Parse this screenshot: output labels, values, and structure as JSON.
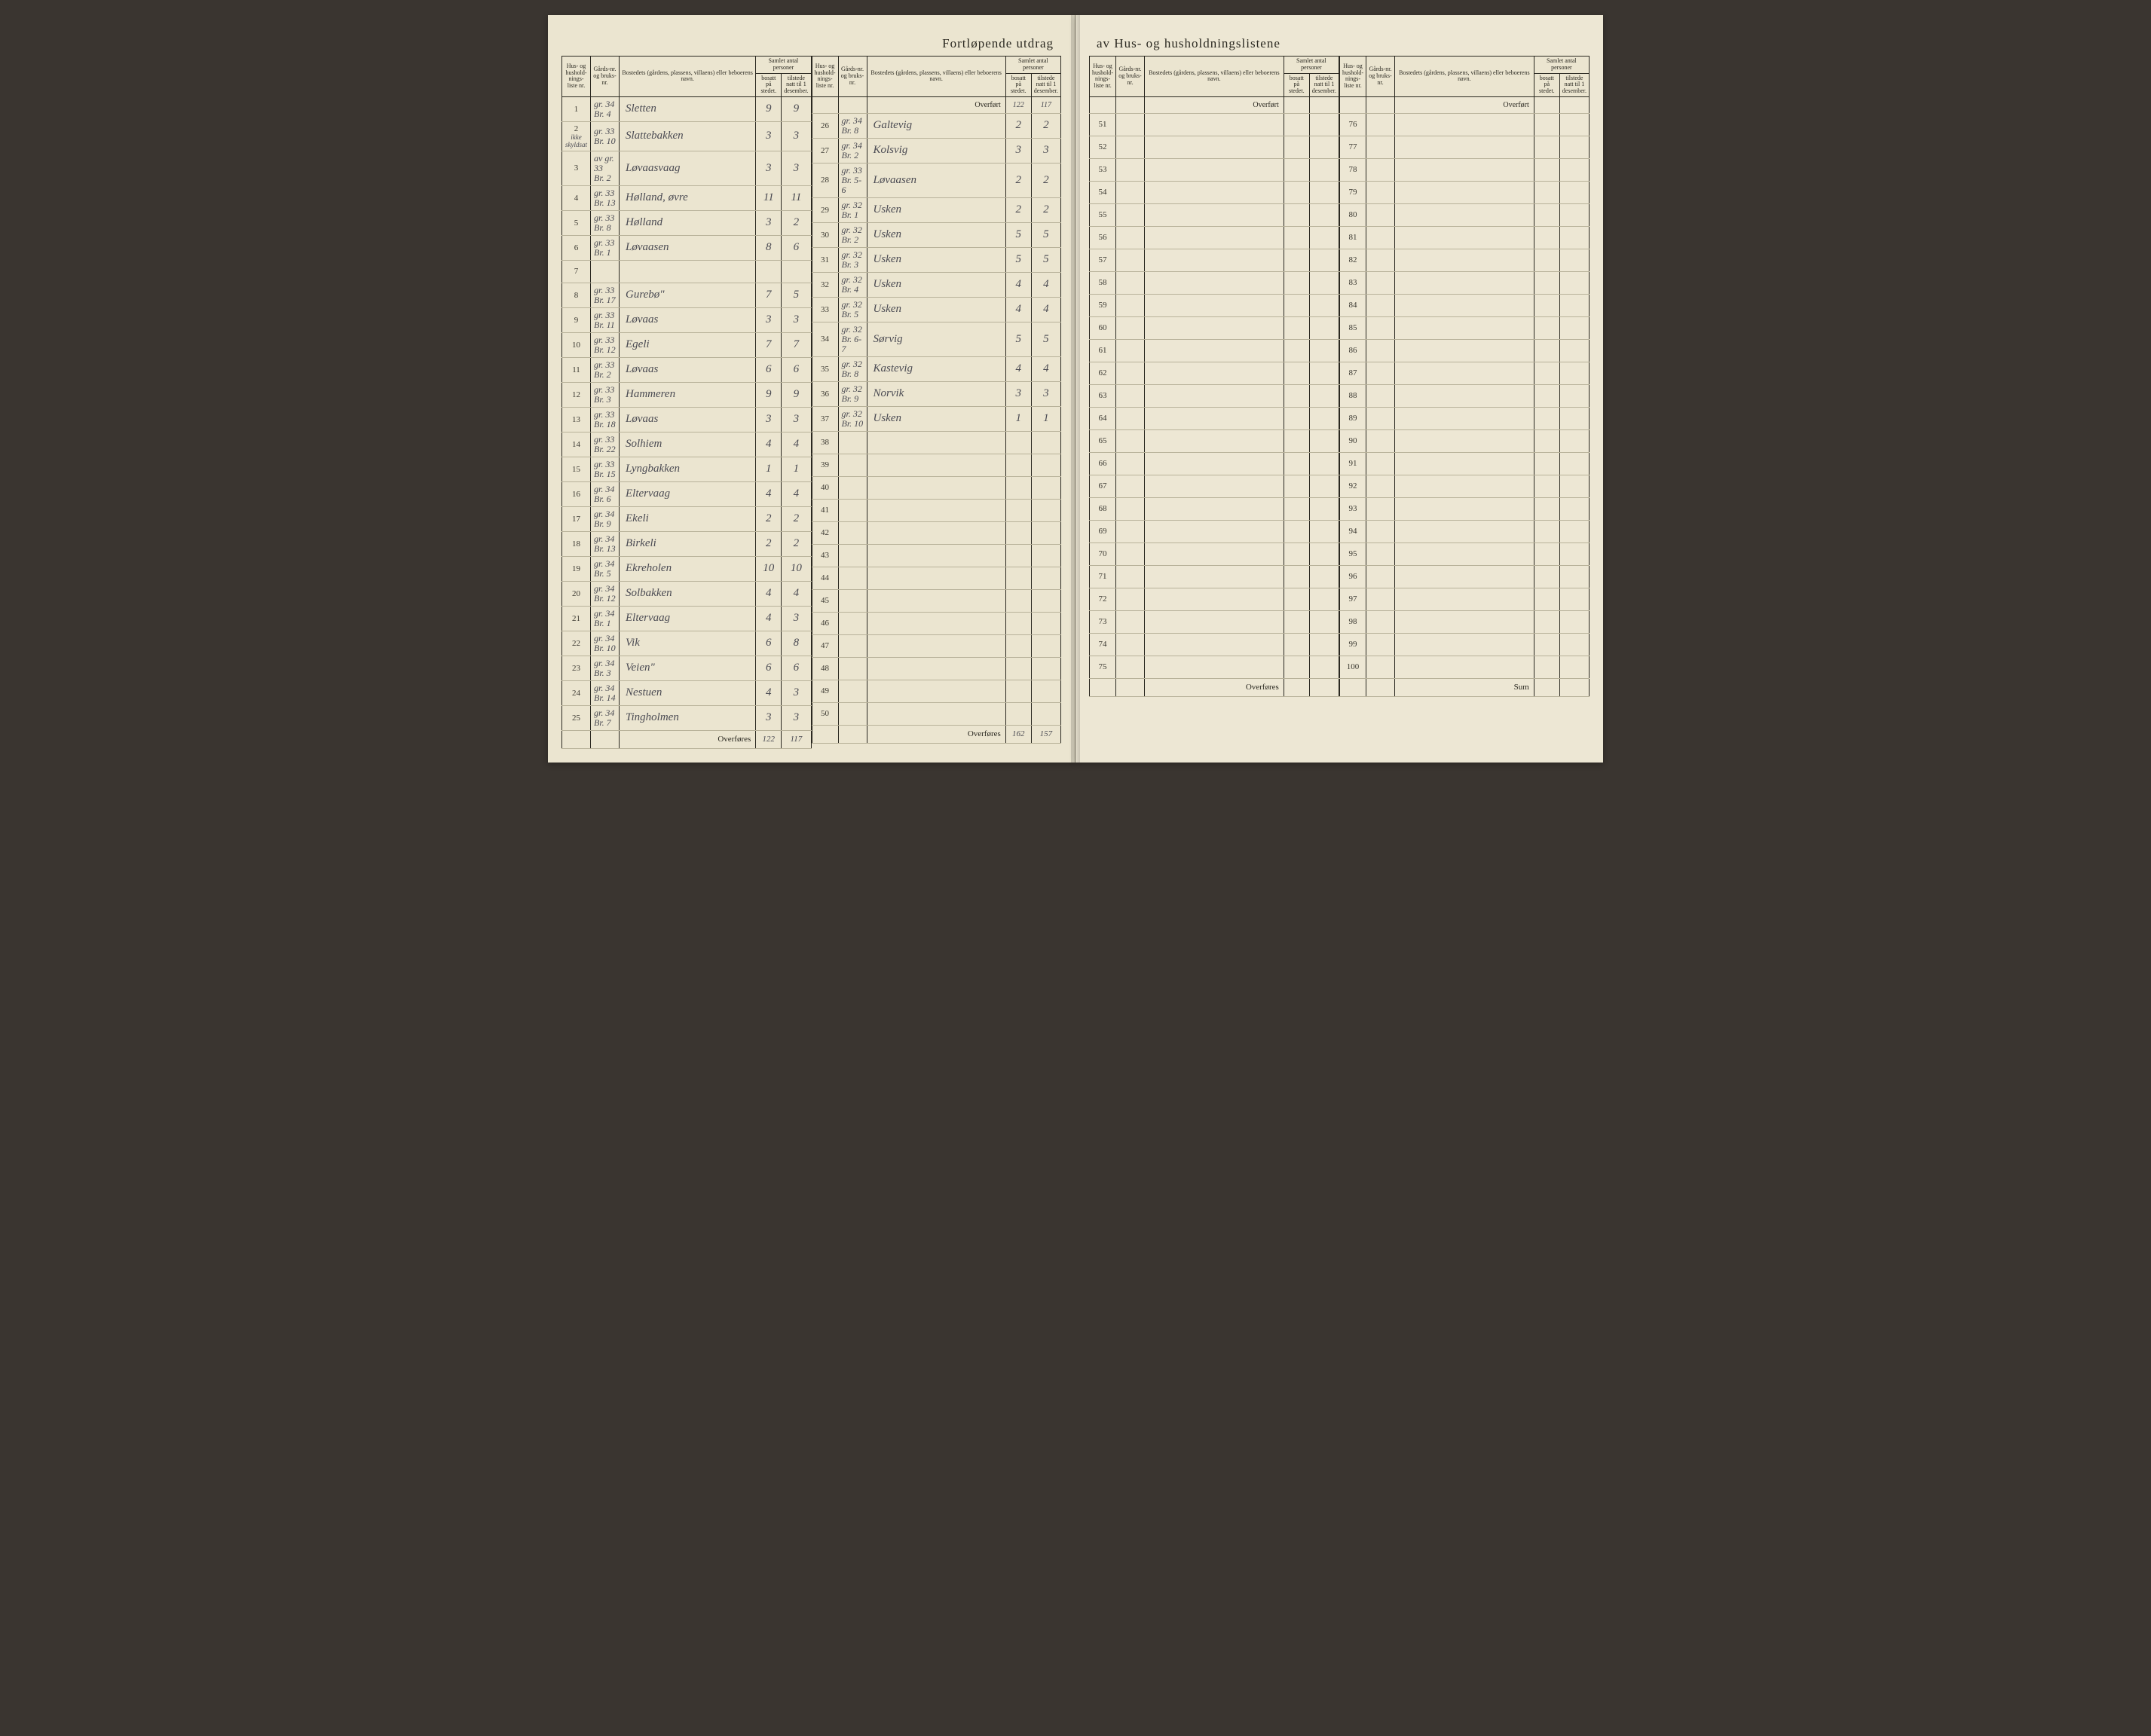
{
  "title_left": "Fortløpende utdrag",
  "title_right": "av Hus- og husholdningslistene",
  "headers": {
    "col1": "Hus- og hushold-nings-liste nr.",
    "col2": "Gårds-nr. og bruks-nr.",
    "col3": "Bostedets (gårdens, plassens, villaens) eller beboerens navn.",
    "col4_group": "Samlet antal personer",
    "col4a": "bosatt på stedet.",
    "col4b": "tilstede natt til 1 desember."
  },
  "overfort": "Overført",
  "overfores": "Overføres",
  "sum": "Sum",
  "overfort_vals": {
    "a": "122",
    "b": "117"
  },
  "left_a": [
    {
      "nr": "1",
      "g": "gr. 34",
      "b": "Br. 4",
      "name": "Sletten",
      "v1": "9",
      "v2": "9"
    },
    {
      "nr": "2",
      "g": "gr. 33",
      "b": "Br. 10",
      "name": "Slattebakken",
      "v1": "3",
      "v2": "3",
      "note": "ikke skyldsat"
    },
    {
      "nr": "3",
      "g": "gr. 33",
      "b": "Br. 2",
      "name": "Løvaasvaag",
      "v1": "3",
      "v2": "3",
      "pre": "av"
    },
    {
      "nr": "4",
      "g": "gr. 33",
      "b": "Br. 13",
      "name": "Hølland, øvre",
      "v1": "11",
      "v2": "11"
    },
    {
      "nr": "5",
      "g": "gr. 33",
      "b": "Br. 8",
      "name": "Hølland",
      "v1": "3",
      "v2": "2"
    },
    {
      "nr": "6",
      "g": "gr. 33",
      "b": "Br. 1",
      "name": "Løvaasen",
      "v1": "8",
      "v2": "6"
    },
    {
      "nr": "7",
      "g": "",
      "b": "",
      "name": "",
      "v1": "",
      "v2": ""
    },
    {
      "nr": "8",
      "g": "gr. 33",
      "b": "Br. 17",
      "name": "Gurebø\"",
      "v1": "7",
      "v2": "5"
    },
    {
      "nr": "9",
      "g": "gr. 33",
      "b": "Br. 11",
      "name": "Løvaas",
      "v1": "3",
      "v2": "3"
    },
    {
      "nr": "10",
      "g": "gr. 33",
      "b": "Br. 12",
      "name": "Egeli",
      "v1": "7",
      "v2": "7"
    },
    {
      "nr": "11",
      "g": "gr. 33",
      "b": "Br. 2",
      "name": "Løvaas",
      "v1": "6",
      "v2": "6"
    },
    {
      "nr": "12",
      "g": "gr. 33",
      "b": "Br. 3",
      "name": "Hammeren",
      "v1": "9",
      "v2": "9"
    },
    {
      "nr": "13",
      "g": "gr. 33",
      "b": "Br. 18",
      "name": "Løvaas",
      "v1": "3",
      "v2": "3"
    },
    {
      "nr": "14",
      "g": "gr. 33",
      "b": "Br. 22",
      "name": "Solhiem",
      "v1": "4",
      "v2": "4"
    },
    {
      "nr": "15",
      "g": "gr. 33",
      "b": "Br. 15",
      "name": "Lyngbakken",
      "v1": "1",
      "v2": "1"
    },
    {
      "nr": "16",
      "g": "gr. 34",
      "b": "Br. 6",
      "name": "Eltervaag",
      "v1": "4",
      "v2": "4"
    },
    {
      "nr": "17",
      "g": "gr. 34",
      "b": "Br. 9",
      "name": "Ekeli",
      "v1": "2",
      "v2": "2"
    },
    {
      "nr": "18",
      "g": "gr. 34",
      "b": "Br. 13",
      "name": "Birkeli",
      "v1": "2",
      "v2": "2"
    },
    {
      "nr": "19",
      "g": "gr. 34",
      "b": "Br. 5",
      "name": "Ekreholen",
      "v1": "10",
      "v2": "10"
    },
    {
      "nr": "20",
      "g": "gr. 34",
      "b": "Br. 12",
      "name": "Solbakken",
      "v1": "4",
      "v2": "4"
    },
    {
      "nr": "21",
      "g": "gr. 34",
      "b": "Br. 1",
      "name": "Eltervaag",
      "v1": "4",
      "v2": "3"
    },
    {
      "nr": "22",
      "g": "gr. 34",
      "b": "Br. 10",
      "name": "Vik",
      "v1": "6",
      "v2": "8"
    },
    {
      "nr": "23",
      "g": "gr. 34",
      "b": "Br. 3",
      "name": "Veien\"",
      "v1": "6",
      "v2": "6"
    },
    {
      "nr": "24",
      "g": "gr. 34",
      "b": "Br. 14",
      "name": "Nestuen",
      "v1": "4",
      "v2": "3"
    },
    {
      "nr": "25",
      "g": "gr. 34",
      "b": "Br. 7",
      "name": "Tingholmen",
      "v1": "3",
      "v2": "3"
    }
  ],
  "left_a_foot": {
    "a": "122",
    "b": "117"
  },
  "left_b": [
    {
      "nr": "26",
      "g": "gr. 34",
      "b": "Br. 8",
      "name": "Galtevig",
      "v1": "2",
      "v2": "2"
    },
    {
      "nr": "27",
      "g": "gr. 34",
      "b": "Br. 2",
      "name": "Kolsvig",
      "v1": "3",
      "v2": "3"
    },
    {
      "nr": "28",
      "g": "gr. 33",
      "b": "Br. 5-6",
      "name": "Løvaasen",
      "v1": "2",
      "v2": "2"
    },
    {
      "nr": "29",
      "g": "gr. 32",
      "b": "Br. 1",
      "name": "Usken",
      "v1": "2",
      "v2": "2"
    },
    {
      "nr": "30",
      "g": "gr. 32",
      "b": "Br. 2",
      "name": "Usken",
      "v1": "5",
      "v2": "5"
    },
    {
      "nr": "31",
      "g": "gr. 32",
      "b": "Br. 3",
      "name": "Usken",
      "v1": "5",
      "v2": "5"
    },
    {
      "nr": "32",
      "g": "gr. 32",
      "b": "Br. 4",
      "name": "Usken",
      "v1": "4",
      "v2": "4"
    },
    {
      "nr": "33",
      "g": "gr. 32",
      "b": "Br. 5",
      "name": "Usken",
      "v1": "4",
      "v2": "4"
    },
    {
      "nr": "34",
      "g": "gr. 32",
      "b": "Br. 6-7",
      "name": "Sørvig",
      "v1": "5",
      "v2": "5"
    },
    {
      "nr": "35",
      "g": "gr. 32",
      "b": "Br. 8",
      "name": "Kastevig",
      "v1": "4",
      "v2": "4"
    },
    {
      "nr": "36",
      "g": "gr. 32",
      "b": "Br. 9",
      "name": "Norvik",
      "v1": "3",
      "v2": "3"
    },
    {
      "nr": "37",
      "g": "gr. 32",
      "b": "Br. 10",
      "name": "Usken",
      "v1": "1",
      "v2": "1"
    },
    {
      "nr": "38"
    },
    {
      "nr": "39"
    },
    {
      "nr": "40"
    },
    {
      "nr": "41"
    },
    {
      "nr": "42"
    },
    {
      "nr": "43"
    },
    {
      "nr": "44"
    },
    {
      "nr": "45"
    },
    {
      "nr": "46"
    },
    {
      "nr": "47"
    },
    {
      "nr": "48"
    },
    {
      "nr": "49"
    },
    {
      "nr": "50"
    }
  ],
  "left_b_foot": {
    "a": "162",
    "b": "157"
  },
  "right_a_start": 51,
  "right_b_start": 76,
  "rows_per_half": 25,
  "colors": {
    "paper": "#ebe5d0",
    "ink": "#2a2820",
    "handwriting": "#4a4a52",
    "rule": "#b8b29a"
  }
}
